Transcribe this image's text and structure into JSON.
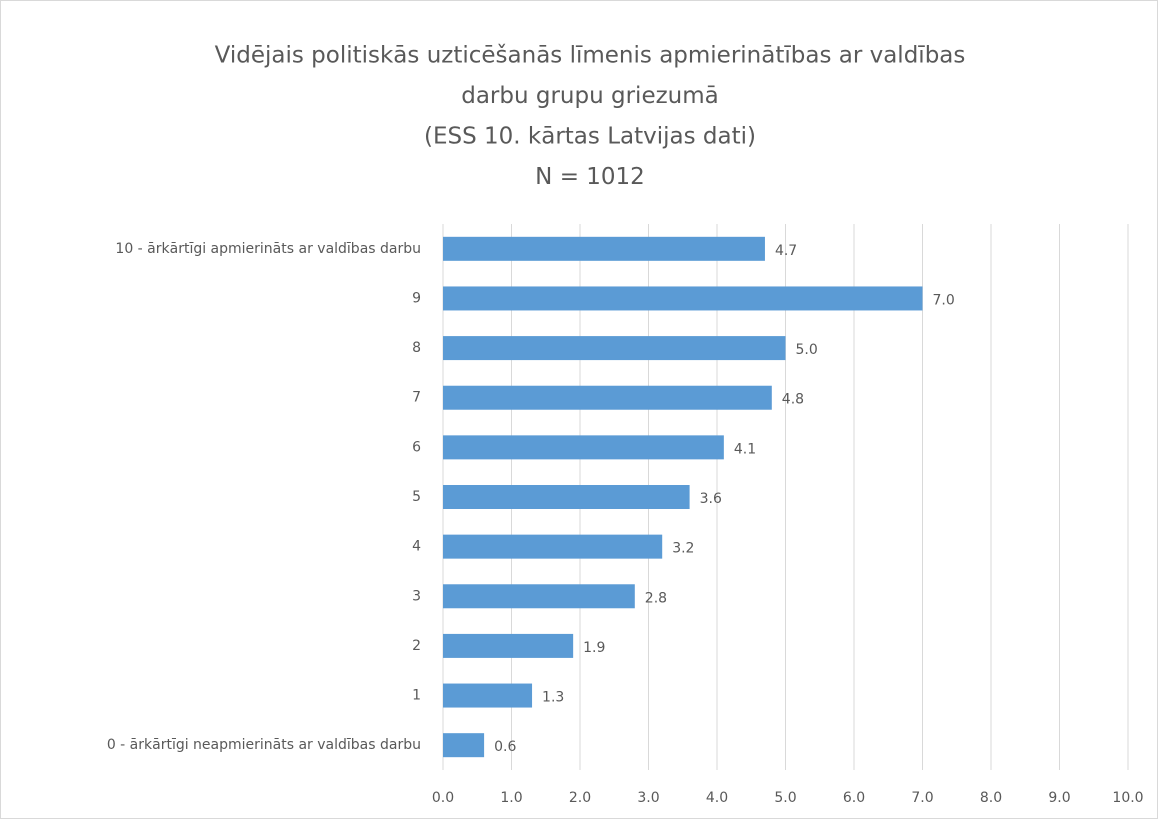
{
  "chart_data": {
    "type": "bar",
    "orientation": "horizontal",
    "title": [
      "Vidējais politiskās uzticēšanās līmenis apmierinātības ar valdības",
      "darbu grupu griezumā",
      "(ESS 10. kārtas Latvijas dati)",
      "N = 1012"
    ],
    "categories": [
      "10 - ārkārtīgi apmierināts ar valdības darbu",
      "9",
      "8",
      "7",
      "6",
      "5",
      "4",
      "3",
      "2",
      "1",
      "0 - ārkārtīgi neapmierināts ar valdības darbu"
    ],
    "values": [
      4.7,
      7.0,
      5.0,
      4.8,
      4.1,
      3.6,
      3.2,
      2.8,
      1.9,
      1.3,
      0.6
    ],
    "value_labels": [
      "4.7",
      "7.0",
      "5.0",
      "4.8",
      "4.1",
      "3.6",
      "3.2",
      "2.8",
      "1.9",
      "1.3",
      "0.6"
    ],
    "color": "#5b9bd5",
    "xlim": [
      0,
      10
    ],
    "xticks": [
      {
        "value": 0,
        "label": "0.0"
      },
      {
        "value": 1,
        "label": "1.0"
      },
      {
        "value": 2,
        "label": "2.0"
      },
      {
        "value": 3,
        "label": "3.0"
      },
      {
        "value": 4,
        "label": "4.0"
      },
      {
        "value": 5,
        "label": "5.0"
      },
      {
        "value": 6,
        "label": "6.0"
      },
      {
        "value": 7,
        "label": "7.0"
      },
      {
        "value": 8,
        "label": "8.0"
      },
      {
        "value": 9,
        "label": "9.0"
      },
      {
        "value": 10,
        "label": "10.0"
      }
    ],
    "grid": true
  }
}
